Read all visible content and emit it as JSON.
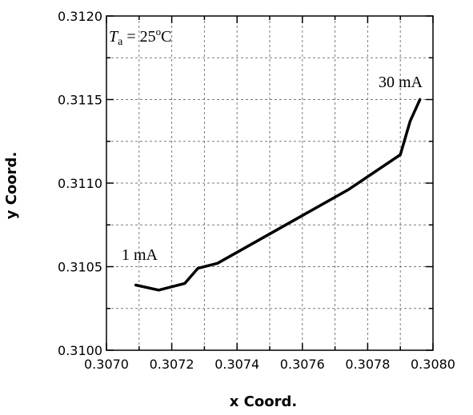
{
  "chart_data": {
    "type": "line",
    "title": "",
    "xlabel": "x Coord.",
    "ylabel": "y Coord.",
    "xlim": [
      0.307,
      0.308
    ],
    "ylim": [
      0.31,
      0.312
    ],
    "x_ticks": [
      "0.3070",
      "0.3072",
      "0.3074",
      "0.3076",
      "0.3078",
      "0.3080"
    ],
    "x_tick_values": [
      0.307,
      0.3072,
      0.3074,
      0.3076,
      0.3078,
      0.308
    ],
    "y_ticks": [
      "0.3100",
      "0.3105",
      "0.3110",
      "0.3115",
      "0.3120"
    ],
    "y_tick_values": [
      0.31,
      0.3105,
      0.311,
      0.3115,
      0.312
    ],
    "grid": true,
    "series": [
      {
        "color": "#000000",
        "points": [
          {
            "x": 0.30709,
            "y": 0.31039
          },
          {
            "x": 0.30716,
            "y": 0.31036
          },
          {
            "x": 0.30724,
            "y": 0.3104
          },
          {
            "x": 0.30728,
            "y": 0.31049
          },
          {
            "x": 0.30734,
            "y": 0.31052
          },
          {
            "x": 0.30774,
            "y": 0.31096
          },
          {
            "x": 0.3079,
            "y": 0.31117
          },
          {
            "x": 0.30793,
            "y": 0.31137
          },
          {
            "x": 0.30796,
            "y": 0.3115
          }
        ]
      }
    ],
    "annotations": {
      "ambient_prefix": "T",
      "ambient_subscript": "a",
      "ambient_mid": " = 25",
      "ambient_superscript": "o",
      "ambient_suffix": "C",
      "start_label": "1 mA",
      "end_label": "30 mA"
    }
  }
}
